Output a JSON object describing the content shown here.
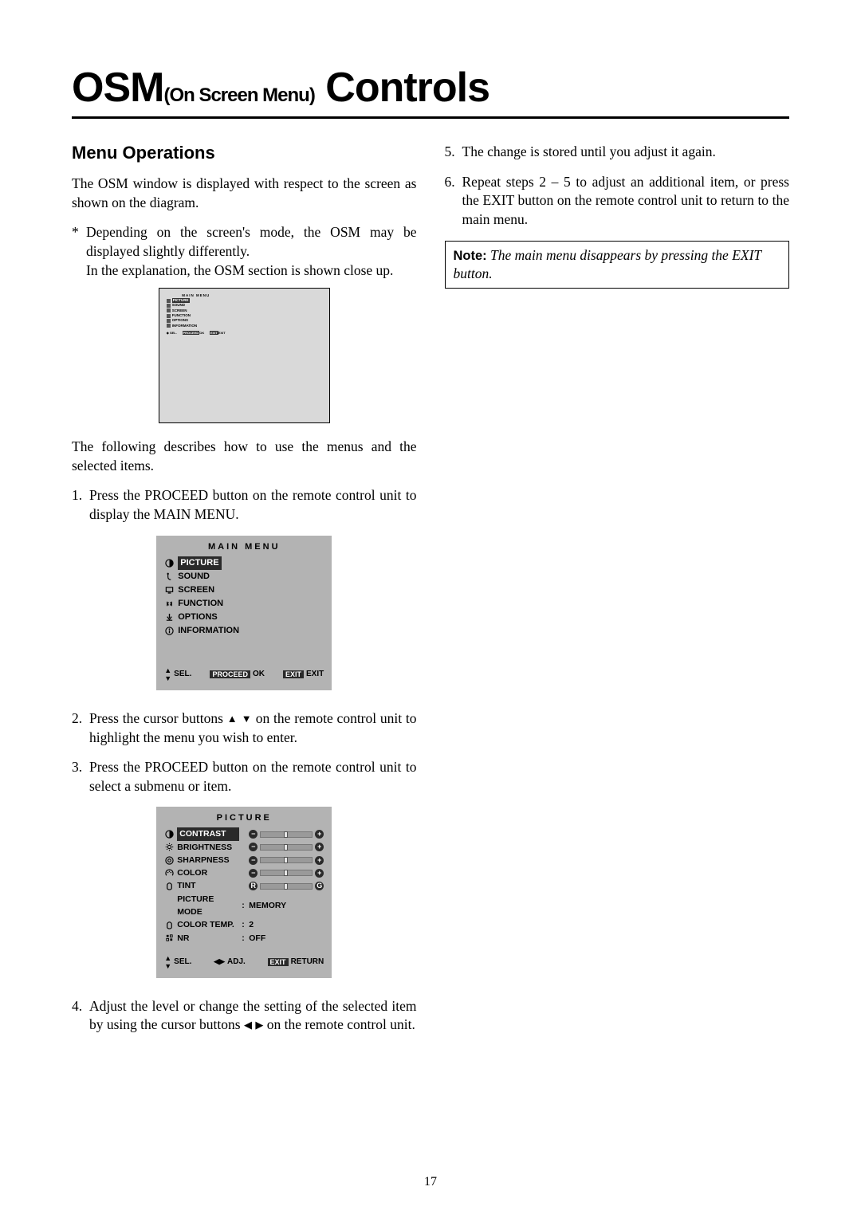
{
  "title": {
    "pre": "OSM",
    "sub": "(On Screen Menu)",
    "post": " Controls"
  },
  "sectionHeading": "Menu Operations",
  "intro": "The OSM window is displayed with respect to the screen as shown on the diagram.",
  "asterisk": {
    "line1": "Depending on the screen's mode, the OSM may be displayed slightly differently.",
    "line2": "In the explanation, the OSM section is shown close up."
  },
  "afterMini": "The following describes how to use the menus and the selected items.",
  "steps": {
    "s1": "Press the PROCEED button on the remote control unit to display the MAIN MENU.",
    "s2a": "Press the cursor buttons ",
    "s2b": " on the remote control unit to highlight the menu you wish to enter.",
    "s3": "Press the PROCEED button on the remote control unit to select a submenu or item.",
    "s4a": "Adjust the level or change the setting of the selected item by using the cursor buttons ",
    "s4b": " on the remote control unit.",
    "s5": "The change is stored until you adjust it again.",
    "s6": "Repeat steps 2 – 5 to adjust an additional item, or press the EXIT button on the remote control unit to return to the main menu."
  },
  "note": {
    "label": "Note:",
    "text": " The main menu disappears by pressing the EXIT button."
  },
  "mainMenu": {
    "title": "MAIN MENU",
    "items": [
      "PICTURE",
      "SOUND",
      "SCREEN",
      "FUNCTION",
      "OPTIONS",
      "INFORMATION"
    ],
    "selectedIndex": 0,
    "footer": {
      "sel": "SEL.",
      "proceed": "PROCEED",
      "ok": "OK",
      "exit": "EXIT",
      "exit2": "EXIT"
    }
  },
  "pictureMenu": {
    "title": "PICTURE",
    "rows": [
      {
        "label": "CONTRAST",
        "type": "slider",
        "pos": 0.5,
        "left": "−",
        "right": "+"
      },
      {
        "label": "BRIGHTNESS",
        "type": "slider",
        "pos": 0.5,
        "left": "−",
        "right": "+"
      },
      {
        "label": "SHARPNESS",
        "type": "slider",
        "pos": 0.5,
        "left": "−",
        "right": "+"
      },
      {
        "label": "COLOR",
        "type": "slider",
        "pos": 0.5,
        "left": "−",
        "right": "+"
      },
      {
        "label": "TINT",
        "type": "slider",
        "pos": 0.5,
        "left": "R",
        "right": "G"
      },
      {
        "label": "PICTURE MODE",
        "type": "value",
        "value": "MEMORY",
        "noicon": true
      },
      {
        "label": "COLOR TEMP.",
        "type": "value",
        "value": "2"
      },
      {
        "label": "NR",
        "type": "value",
        "value": "OFF"
      }
    ],
    "selectedIndex": 0,
    "footer": {
      "sel": "SEL.",
      "adj": "ADJ.",
      "exit": "EXIT",
      "ret": "RETURN"
    }
  },
  "pageNumber": "17",
  "colors": {
    "osmBg": "#b3b3b3",
    "sel": "#2a2a2a",
    "miniBg": "#d9d9d9"
  }
}
